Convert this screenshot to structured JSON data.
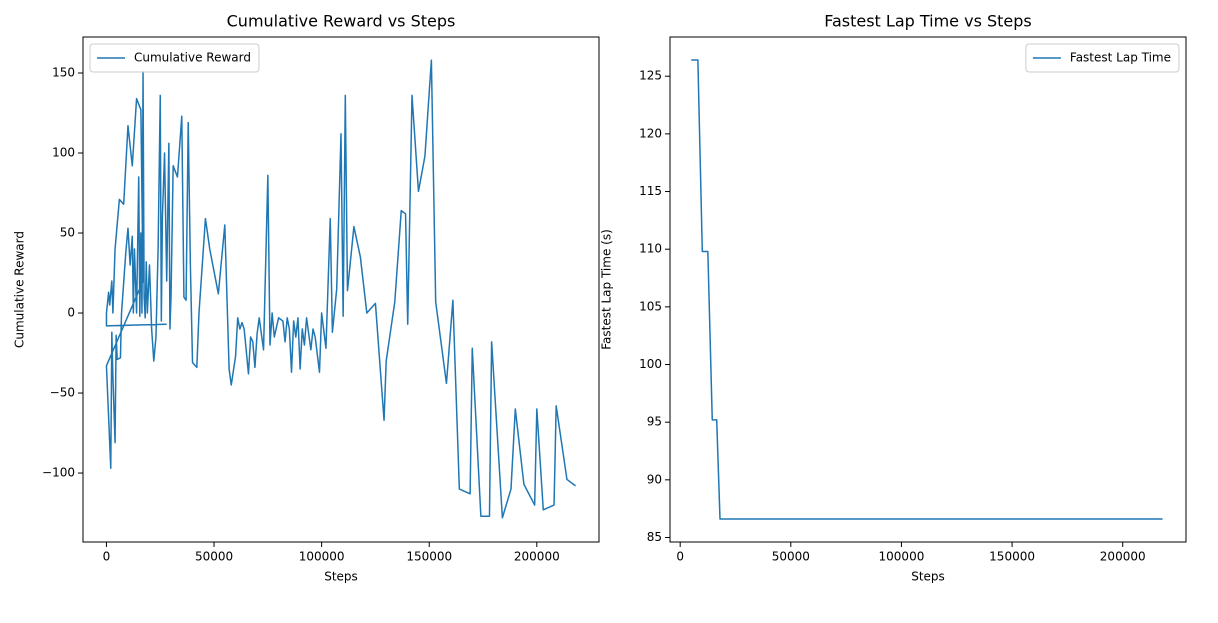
{
  "chart_data": [
    {
      "type": "line",
      "title": "Cumulative Reward vs Steps",
      "x_label": "Steps",
      "y_label": "Cumulative Reward",
      "xlim": [
        -10900,
        228900
      ],
      "ylim": [
        -143.1,
        172.5
      ],
      "xticks": [
        0,
        50000,
        100000,
        150000,
        200000
      ],
      "yticks": [
        {
          "value": -100,
          "label": "−100"
        },
        {
          "value": -50,
          "label": "−50"
        },
        0,
        50,
        100,
        150
      ],
      "legend": "upper left",
      "grid": false,
      "series": [
        {
          "name": "Cumulative Reward",
          "color": "#1f77b4",
          "x": [
            28000,
            0,
            0,
            1000,
            1500,
            2500,
            3000,
            4000,
            6000,
            8000,
            10000,
            12000,
            14000,
            16000,
            17000,
            0,
            2000,
            2500,
            3000,
            4000,
            4500,
            5000,
            6500,
            7000,
            9000,
            10000,
            11000,
            12000,
            12500,
            13000,
            14000,
            15000,
            15500,
            16000,
            16500,
            17000,
            17500,
            18000,
            18500,
            19000,
            20000,
            21000,
            22000,
            23000,
            24000,
            25000,
            25500,
            26000,
            27000,
            28000,
            29000,
            29500,
            30000,
            31000,
            33000,
            35000,
            36000,
            37000,
            38000,
            39000,
            40000,
            42000,
            43000,
            46000,
            48000,
            52000,
            55000,
            57000,
            58000,
            60000,
            61000,
            62000,
            63000,
            64000,
            66000,
            67000,
            68000,
            69000,
            70000,
            71000,
            73000,
            75000,
            76000,
            77000,
            78000,
            80000,
            82000,
            83000,
            84000,
            85000,
            86000,
            87000,
            88000,
            89000,
            90000,
            91000,
            92000,
            93000,
            95000,
            96000,
            97000,
            99000,
            100000,
            102000,
            104000,
            105000,
            107000,
            109000,
            110000,
            111000,
            112000,
            115000,
            118000,
            121000,
            125000,
            129000,
            130000,
            134000,
            137000,
            139000,
            140000,
            142000,
            145000,
            148000,
            151000,
            153000,
            158000,
            161000,
            164000,
            169000,
            170000,
            174000,
            178000,
            179000,
            184000,
            188000,
            190000,
            194000,
            199000,
            200000,
            203000,
            208000,
            209000,
            214000,
            218000
          ],
          "values": [
            -7,
            -8,
            0,
            13,
            5,
            20,
            0,
            40,
            71,
            68,
            117,
            92,
            134,
            127,
            20,
            -33,
            -97,
            -12,
            -40,
            -81,
            -14,
            -29,
            -28,
            0,
            38,
            53,
            30,
            48,
            0,
            40,
            0,
            85,
            -2,
            50,
            0,
            151,
            10,
            -3,
            32,
            0,
            30,
            -10,
            -30,
            -15,
            40,
            136,
            -5,
            60,
            100,
            20,
            106,
            -10,
            10,
            92,
            85,
            123,
            10,
            8,
            119,
            30,
            -31,
            -34,
            0,
            59,
            40,
            12,
            55,
            -35,
            -45,
            -27,
            -3,
            -10,
            -6,
            -10,
            -38,
            -15,
            -18,
            -34,
            -13,
            -3,
            -23,
            86,
            -20,
            0,
            -15,
            -3,
            -5,
            -18,
            -3,
            -10,
            -37,
            -5,
            -15,
            -3,
            -35,
            -10,
            -20,
            -3,
            -23,
            -10,
            -15,
            -37,
            0,
            -22,
            59,
            -12,
            15,
            112,
            -2,
            136,
            14,
            54,
            35,
            0,
            6,
            -67,
            -30,
            7,
            64,
            62,
            -7,
            136,
            76,
            98,
            158,
            7,
            -44,
            8,
            -110,
            -113,
            -22,
            -127,
            -127,
            -18,
            -128,
            -110,
            -60,
            -107,
            -120,
            -60,
            -123,
            -120,
            -58,
            -104,
            -108
          ]
        }
      ]
    },
    {
      "type": "line",
      "title": "Fastest Lap Time vs Steps",
      "x_label": "Steps",
      "y_label": "Fastest Lap Time (s)",
      "xlim": [
        -4600,
        228600
      ],
      "ylim": [
        84.61,
        128.4
      ],
      "xticks": [
        0,
        50000,
        100000,
        150000,
        200000
      ],
      "yticks": [
        85,
        90,
        95,
        100,
        105,
        110,
        115,
        120,
        125
      ],
      "legend": "upper right",
      "grid": false,
      "series": [
        {
          "name": "Fastest Lap Time",
          "color": "#1f77b4",
          "x": [
            5000,
            8000,
            10000,
            12500,
            14500,
            16500,
            18000,
            218000
          ],
          "values": [
            126.4,
            126.4,
            109.8,
            109.8,
            95.2,
            95.2,
            86.6,
            86.6
          ]
        }
      ]
    }
  ]
}
